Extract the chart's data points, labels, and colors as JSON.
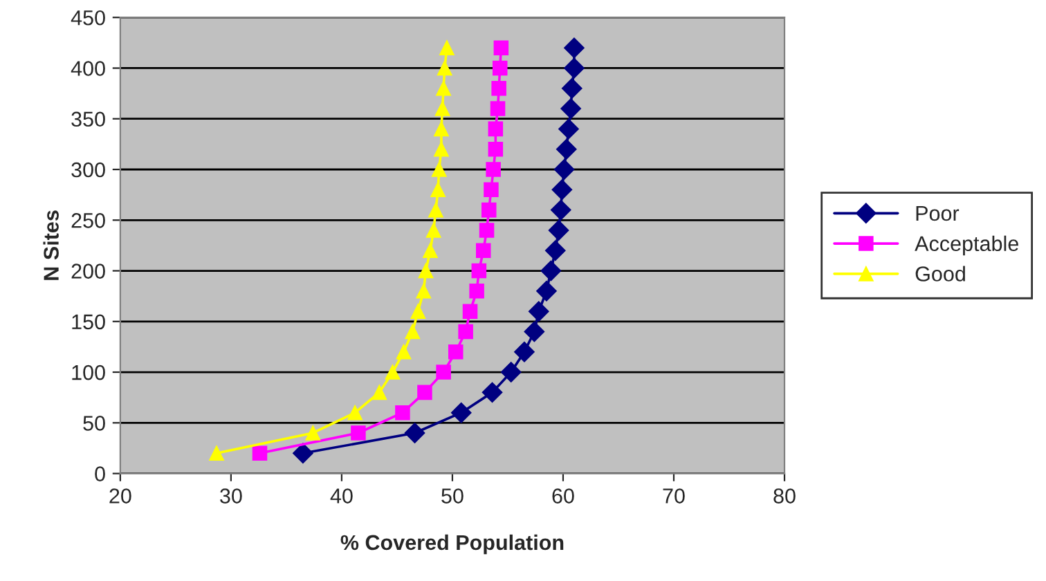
{
  "chart_data": {
    "type": "line",
    "xlabel": "% Covered Population",
    "ylabel": "N Sites",
    "xlim": [
      20,
      80
    ],
    "xticks": [
      20,
      30,
      40,
      50,
      60,
      70,
      80
    ],
    "ylim": [
      0,
      450
    ],
    "yticks": [
      0,
      50,
      100,
      150,
      200,
      250,
      300,
      350,
      400,
      450
    ],
    "grid": "y",
    "legend": "right",
    "series": [
      {
        "name": "Poor",
        "color": "#000080",
        "marker": "diamond",
        "x": [
          36.5,
          46.6,
          50.8,
          53.6,
          55.3,
          56.5,
          57.4,
          57.8,
          58.5,
          58.9,
          59.3,
          59.6,
          59.8,
          59.9,
          60.1,
          60.3,
          60.5,
          60.7,
          60.8,
          61.0,
          61.0
        ],
        "values": [
          20,
          40,
          60,
          80,
          100,
          120,
          140,
          160,
          180,
          200,
          220,
          240,
          260,
          280,
          300,
          320,
          340,
          360,
          380,
          400,
          420
        ]
      },
      {
        "name": "Acceptable",
        "color": "#ff00ff",
        "marker": "square",
        "x": [
          32.6,
          41.5,
          45.5,
          47.5,
          49.2,
          50.3,
          51.2,
          51.6,
          52.2,
          52.4,
          52.8,
          53.1,
          53.3,
          53.5,
          53.7,
          53.9,
          53.9,
          54.1,
          54.2,
          54.3,
          54.4
        ],
        "values": [
          20,
          40,
          60,
          80,
          100,
          120,
          140,
          160,
          180,
          200,
          220,
          240,
          260,
          280,
          300,
          320,
          340,
          360,
          380,
          400,
          420
        ]
      },
      {
        "name": "Good",
        "color": "#ffff00",
        "marker": "triangle",
        "x": [
          28.7,
          37.4,
          41.2,
          43.4,
          44.6,
          45.6,
          46.4,
          46.9,
          47.4,
          47.6,
          48.0,
          48.3,
          48.5,
          48.7,
          48.8,
          49.0,
          49.0,
          49.1,
          49.2,
          49.3,
          49.5
        ],
        "values": [
          20,
          40,
          60,
          80,
          100,
          120,
          140,
          160,
          180,
          200,
          220,
          240,
          260,
          280,
          300,
          320,
          340,
          360,
          380,
          400,
          420
        ]
      }
    ]
  }
}
